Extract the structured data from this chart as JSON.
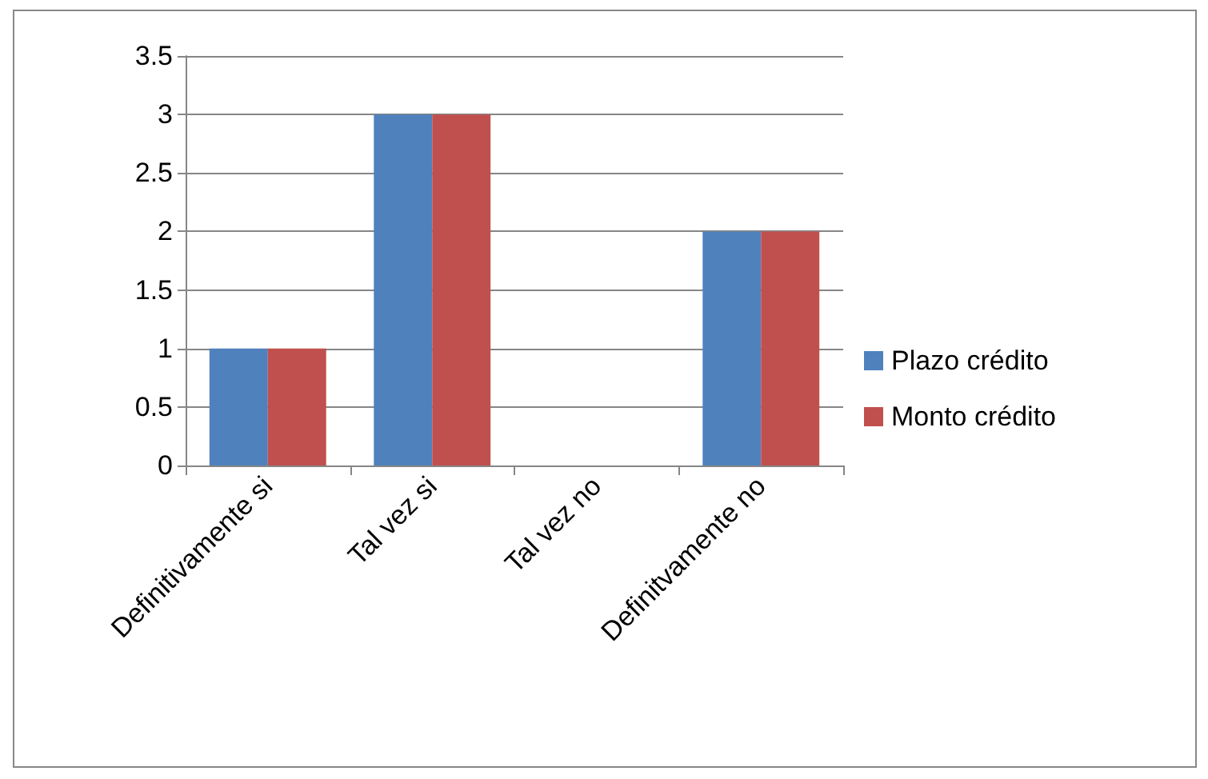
{
  "chart_data": {
    "type": "bar",
    "categories": [
      "Definitivamente si",
      "Tal vez si",
      "Tal vez no",
      "Definitvamente no"
    ],
    "series": [
      {
        "name": "Plazo crédito",
        "color": "#4f81bd",
        "values": [
          1,
          3,
          0,
          2
        ]
      },
      {
        "name": "Monto crédito",
        "color": "#c0504d",
        "values": [
          1,
          3,
          0,
          2
        ]
      }
    ],
    "ylim": [
      0,
      3.5
    ],
    "yticks": [
      0,
      0.5,
      1,
      1.5,
      2,
      2.5,
      3,
      3.5
    ],
    "grid": "y",
    "legend": "right"
  }
}
